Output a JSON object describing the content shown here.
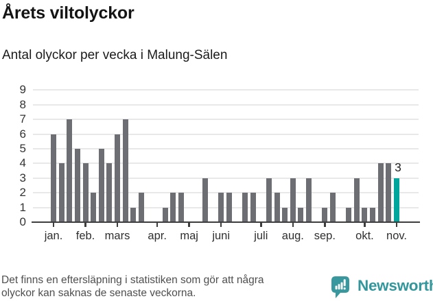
{
  "header": {
    "title": "Årets viltolyckor",
    "subtitle": "Antal olyckor per vecka i Malung-Sälen"
  },
  "footer": {
    "note_line1": "Det finns en eftersläpning i statistiken som gör att några",
    "note_line2": "olyckor kan saknas de senaste veckorna.",
    "brand": "Newsworthy"
  },
  "chart_data": {
    "type": "bar",
    "title": "Årets viltolyckor",
    "subtitle": "Antal olyckor per vecka i Malung-Sälen",
    "xlabel": "",
    "ylabel": "",
    "x_unit": "vecka",
    "ylim": [
      0,
      9
    ],
    "yticks": [
      0,
      1,
      2,
      3,
      4,
      5,
      6,
      7,
      8,
      9
    ],
    "grid": true,
    "values": [
      6,
      4,
      7,
      5,
      4,
      2,
      5,
      4,
      6,
      7,
      1,
      2,
      0,
      0,
      1,
      2,
      2,
      0,
      0,
      3,
      0,
      2,
      2,
      0,
      2,
      2,
      0,
      3,
      2,
      1,
      3,
      1,
      3,
      0,
      1,
      2,
      0,
      1,
      3,
      1,
      1,
      4,
      4,
      3
    ],
    "month_ticks": [
      {
        "label": "jan.",
        "week": 1
      },
      {
        "label": "feb.",
        "week": 5
      },
      {
        "label": "mars",
        "week": 9
      },
      {
        "label": "apr.",
        "week": 14
      },
      {
        "label": "maj",
        "week": 18
      },
      {
        "label": "juni",
        "week": 22
      },
      {
        "label": "juli",
        "week": 27
      },
      {
        "label": "aug.",
        "week": 31
      },
      {
        "label": "sep.",
        "week": 35
      },
      {
        "label": "okt.",
        "week": 40
      },
      {
        "label": "nov.",
        "week": 44
      }
    ],
    "highlight": {
      "index": 43,
      "label": "3"
    },
    "colors": {
      "bar": "#6d6d74",
      "highlight": "#00a69c",
      "grid": "#e8e8e8",
      "axis": "#3d3d3d",
      "tick_text": "#2f2f2f"
    }
  }
}
